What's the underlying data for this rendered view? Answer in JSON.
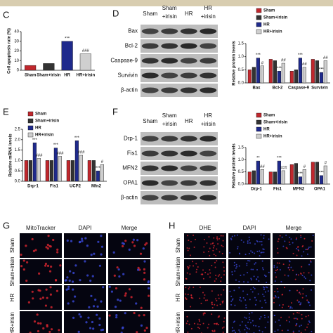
{
  "panel_labels": [
    "C",
    "D",
    "E",
    "F",
    "G",
    "H"
  ],
  "chart_data": [
    {
      "type": "bar",
      "ylabel": "Cell apoptosis rate (%)",
      "categories": [
        "Sham",
        "Sham+irisin",
        "HR",
        "HR+irisin"
      ],
      "values": [
        5,
        7,
        30,
        17
      ],
      "colors": [
        "#c0272d",
        "#333333",
        "#1f2a8c",
        "#cfcfcf"
      ],
      "annotations": [
        null,
        null,
        "***",
        "###"
      ],
      "ylim": [
        0,
        40
      ],
      "yticks": [
        0,
        10,
        20,
        30,
        40
      ]
    },
    {
      "type": "grouped_bar",
      "ylabel": "Relative protein levels",
      "categories": [
        "Bax",
        "Bcl-2",
        "Caspase-9",
        "Survivin"
      ],
      "series": [
        {
          "name": "Sham",
          "color": "#c0272d",
          "values": [
            0.5,
            0.9,
            0.45,
            0.9
          ],
          "annotations": [
            null,
            null,
            null,
            null
          ]
        },
        {
          "name": "Sham+irisin",
          "color": "#333333",
          "values": [
            0.6,
            0.85,
            0.5,
            0.85
          ],
          "annotations": [
            null,
            null,
            null,
            null
          ]
        },
        {
          "name": "HR",
          "color": "#1f2a8c",
          "values": [
            0.95,
            0.45,
            0.95,
            0.4
          ],
          "annotations": [
            "***",
            "***",
            "***",
            "***"
          ]
        },
        {
          "name": "HR+irisin",
          "color": "#cfcfcf",
          "values": [
            0.65,
            0.75,
            0.6,
            0.85
          ],
          "annotations": [
            "#",
            "##",
            "##",
            "##"
          ]
        }
      ],
      "ylim": [
        0,
        1.5
      ],
      "yticks": [
        {
          "value": 0,
          "label": "0.0"
        },
        0.5,
        {
          "value": 1,
          "label": "1.0"
        },
        1.5
      ]
    },
    {
      "type": "grouped_bar",
      "ylabel": "Relative mRNA levels",
      "categories": [
        "Drp-1",
        "Fis1",
        "UCP2",
        "Mfn2"
      ],
      "series": [
        {
          "name": "Sham",
          "color": "#c0272d",
          "values": [
            1.0,
            1.0,
            1.0,
            1.0
          ],
          "annotations": [
            null,
            null,
            null,
            null
          ]
        },
        {
          "name": "Sham+irisin",
          "color": "#333333",
          "values": [
            1.0,
            1.0,
            1.0,
            1.0
          ],
          "annotations": [
            null,
            null,
            null,
            null
          ]
        },
        {
          "name": "HR",
          "color": "#1f2a8c",
          "values": [
            1.85,
            1.6,
            1.95,
            0.5
          ],
          "annotations": [
            "***",
            "***",
            "***",
            "***"
          ]
        },
        {
          "name": "HR+irisin",
          "color": "#cfcfcf",
          "values": [
            1.1,
            1.2,
            1.25,
            0.8
          ],
          "annotations": [
            "###",
            "###",
            "###",
            "#"
          ]
        }
      ],
      "ylim": [
        0,
        2.5
      ],
      "yticks": [
        {
          "value": 0,
          "label": "0.0"
        },
        0.5,
        {
          "value": 1,
          "label": "1.0"
        },
        1.5,
        {
          "value": 2,
          "label": "2.0"
        },
        2.5
      ]
    },
    {
      "type": "grouped_bar",
      "ylabel": "Relative protein levels",
      "categories": [
        "Drp-1",
        "Fis1",
        "MFN2",
        "OPA1"
      ],
      "series": [
        {
          "name": "Sham",
          "color": "#c0272d",
          "values": [
            0.5,
            0.5,
            0.8,
            0.9
          ],
          "annotations": [
            null,
            null,
            null,
            null
          ]
        },
        {
          "name": "Sham+irisin",
          "color": "#333333",
          "values": [
            0.55,
            0.5,
            0.85,
            0.9
          ],
          "annotations": [
            null,
            null,
            null,
            null
          ]
        },
        {
          "name": "HR",
          "color": "#1f2a8c",
          "values": [
            0.95,
            0.95,
            0.3,
            0.35
          ],
          "annotations": [
            "**",
            "***",
            "***",
            "***"
          ]
        },
        {
          "name": "HR+irisin",
          "color": "#cfcfcf",
          "values": [
            0.6,
            0.55,
            0.6,
            0.75
          ],
          "annotations": [
            "##",
            "###",
            "#",
            "#"
          ]
        }
      ],
      "ylim": [
        0,
        1.5
      ],
      "yticks": [
        {
          "value": 0,
          "label": "0.0"
        },
        0.5,
        {
          "value": 1,
          "label": "1.0"
        },
        1.5
      ]
    }
  ],
  "blots": [
    {
      "columns": [
        [
          "Sham"
        ],
        [
          "Sham",
          "+irisin"
        ],
        [
          "HR"
        ],
        [
          "HR",
          "+irisin"
        ]
      ],
      "rows": [
        "Bax",
        "Bcl-2",
        "Caspase-9",
        "Survivin",
        "β-actin"
      ]
    },
    {
      "columns": [
        [
          "Sham"
        ],
        [
          "Sham",
          "+irisin"
        ],
        [
          "HR"
        ],
        [
          "HR",
          "+irisin"
        ]
      ],
      "rows": [
        "Drp-1",
        "Fis1",
        "MFN2",
        "OPA1",
        "β-actin"
      ]
    }
  ],
  "micrographs": [
    {
      "channels": [
        "MitoTracker",
        "DAPI",
        "Merge"
      ],
      "rows": [
        "Sham",
        "Sham+irisin",
        "HR",
        "HR+irisin"
      ]
    },
    {
      "channels": [
        "DHE",
        "DAPI",
        "Merge"
      ],
      "rows": [
        "Sham",
        "Sham+irisin",
        "HR",
        "HR+irisin"
      ]
    }
  ]
}
